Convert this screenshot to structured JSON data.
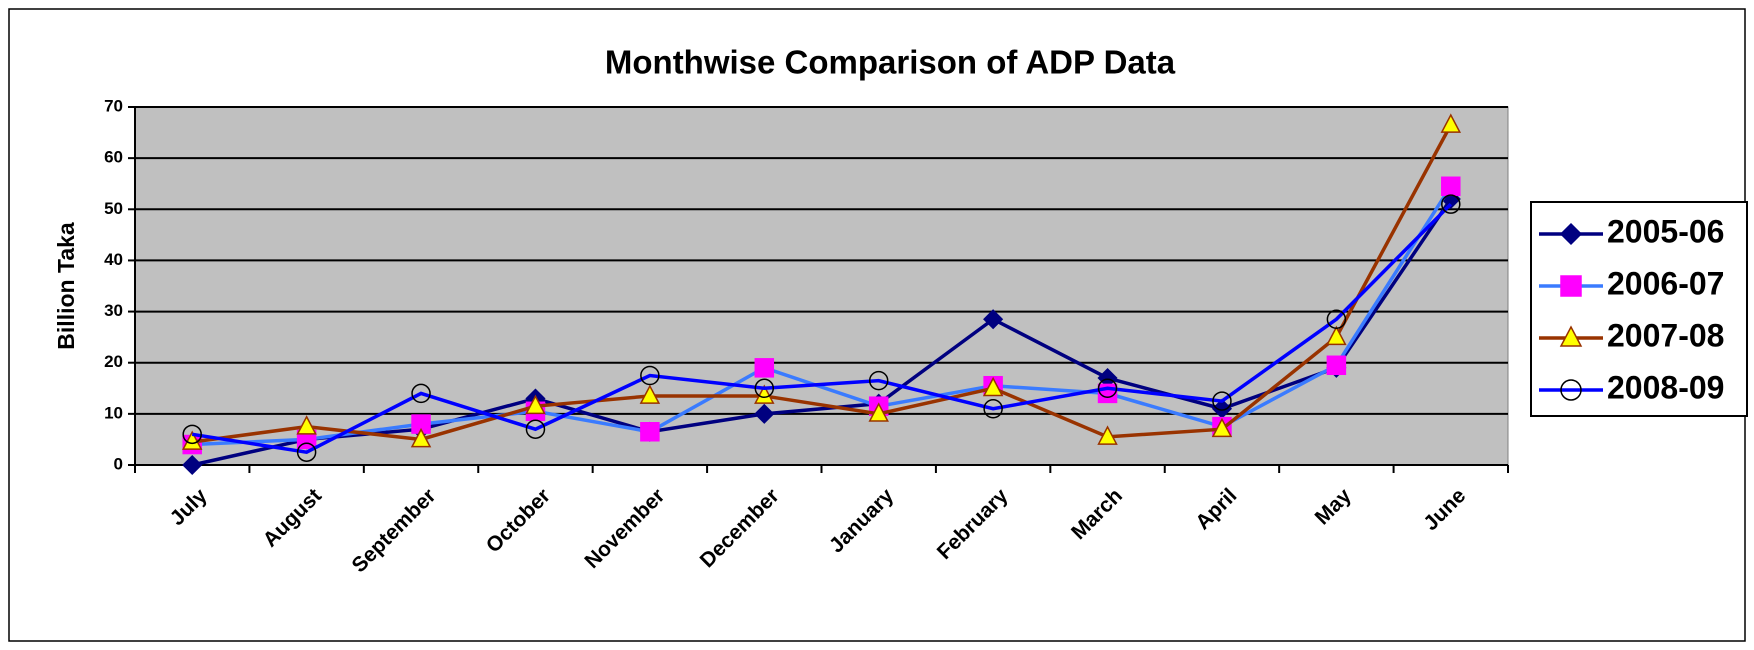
{
  "chart_data": {
    "type": "line",
    "title": "Monthwise Comparison of ADP Data",
    "y_label": "Billion Taka",
    "categories": [
      "July",
      "August",
      "September",
      "October",
      "November",
      "December",
      "January",
      "February",
      "March",
      "April",
      "May",
      "June"
    ],
    "series": [
      {
        "name": "2005-06",
        "color": "#000080",
        "marker": "diamond",
        "marker_color": "#000080",
        "values": [
          0,
          5,
          7,
          13,
          6.5,
          10,
          12,
          28.5,
          17,
          11,
          19,
          52
        ]
      },
      {
        "name": "2006-07",
        "color": "#3a7bff",
        "marker": "square",
        "marker_color": "#ff00ff",
        "values": [
          4,
          5,
          8,
          10.5,
          6.5,
          19,
          11.5,
          15.5,
          14,
          7.5,
          19.5,
          54.5
        ]
      },
      {
        "name": "2007-08",
        "color": "#993300",
        "marker": "triangle",
        "marker_color": "#ffff00",
        "values": [
          4.5,
          7.5,
          5,
          11.5,
          13.5,
          13.5,
          10,
          15,
          5.5,
          7,
          25,
          66.5
        ]
      },
      {
        "name": "2008-09",
        "color": "#0000ff",
        "marker": "circle",
        "marker_color": "none",
        "values": [
          6,
          2.5,
          14,
          7,
          17.5,
          15,
          16.5,
          11,
          15,
          12.5,
          28.5,
          51
        ]
      }
    ],
    "ylim": [
      0,
      70
    ],
    "yticks": [
      0,
      10,
      20,
      30,
      40,
      50,
      60,
      70
    ],
    "grid": true,
    "plot_background": "#c0c0c0",
    "legend": "right"
  }
}
